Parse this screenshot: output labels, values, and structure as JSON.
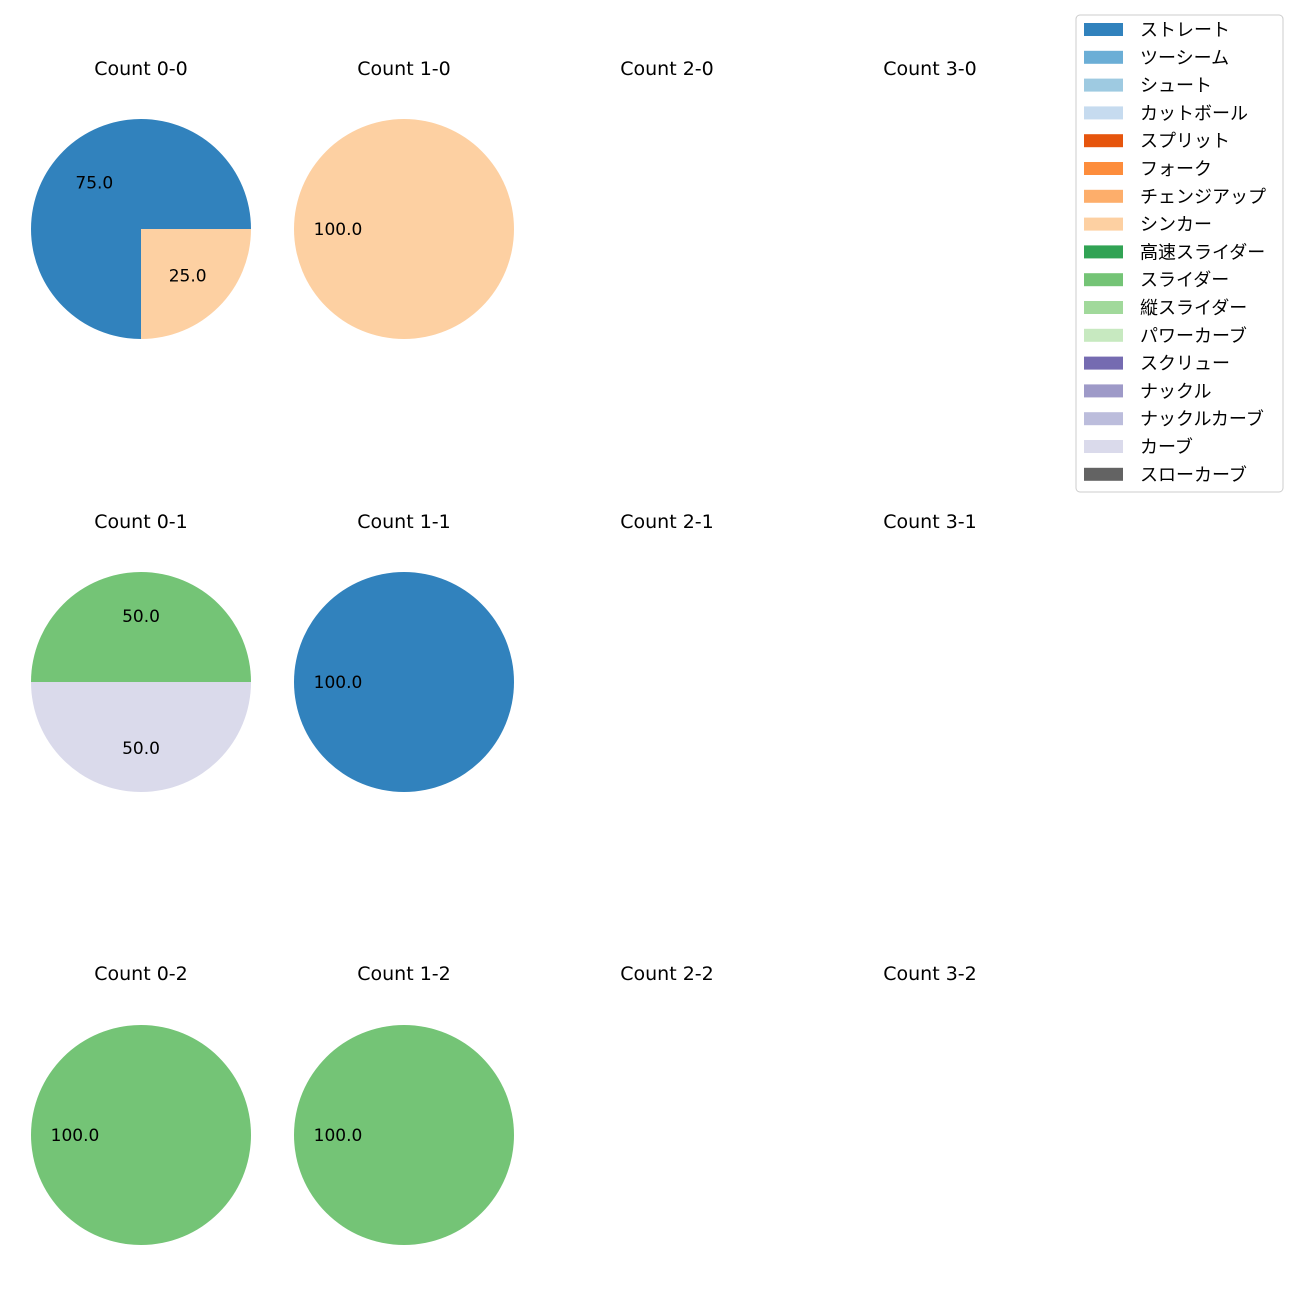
{
  "chart_data": {
    "type": "pie",
    "subplots": [
      {
        "title": "Count 0-0",
        "slices": [
          {
            "label": "ストレート",
            "value": 75.0
          },
          {
            "label": "シンカー",
            "value": 25.0
          }
        ]
      },
      {
        "title": "Count 1-0",
        "slices": [
          {
            "label": "シンカー",
            "value": 100.0
          }
        ]
      },
      {
        "title": "Count 2-0",
        "slices": []
      },
      {
        "title": "Count 3-0",
        "slices": []
      },
      {
        "title": "Count 0-1",
        "slices": [
          {
            "label": "スライダー",
            "value": 50.0
          },
          {
            "label": "カーブ",
            "value": 50.0
          }
        ]
      },
      {
        "title": "Count 1-1",
        "slices": [
          {
            "label": "ストレート",
            "value": 100.0
          }
        ]
      },
      {
        "title": "Count 2-1",
        "slices": []
      },
      {
        "title": "Count 3-1",
        "slices": []
      },
      {
        "title": "Count 0-2",
        "slices": [
          {
            "label": "スライダー",
            "value": 100.0
          }
        ]
      },
      {
        "title": "Count 1-2",
        "slices": [
          {
            "label": "スライダー",
            "value": 100.0
          }
        ]
      },
      {
        "title": "Count 2-2",
        "slices": []
      },
      {
        "title": "Count 3-2",
        "slices": []
      }
    ],
    "legend": [
      {
        "label": "ストレート",
        "color": "#3182bd"
      },
      {
        "label": "ツーシーム",
        "color": "#6baed6"
      },
      {
        "label": "シュート",
        "color": "#9ecae1"
      },
      {
        "label": "カットボール",
        "color": "#c6dbef"
      },
      {
        "label": "スプリット",
        "color": "#e6550d"
      },
      {
        "label": "フォーク",
        "color": "#fd8d3c"
      },
      {
        "label": "チェンジアップ",
        "color": "#fdae6b"
      },
      {
        "label": "シンカー",
        "color": "#fdd0a2"
      },
      {
        "label": "高速スライダー",
        "color": "#31a354"
      },
      {
        "label": "スライダー",
        "color": "#74c476"
      },
      {
        "label": "縦スライダー",
        "color": "#a1d99b"
      },
      {
        "label": "パワーカーブ",
        "color": "#c7e9c0"
      },
      {
        "label": "スクリュー",
        "color": "#756bb1"
      },
      {
        "label": "ナックル",
        "color": "#9e9ac8"
      },
      {
        "label": "ナックルカーブ",
        "color": "#bcbddc"
      },
      {
        "label": "カーブ",
        "color": "#dadaeb"
      },
      {
        "label": "スローカーブ",
        "color": "#636363"
      }
    ],
    "legend_position": "top-right"
  }
}
